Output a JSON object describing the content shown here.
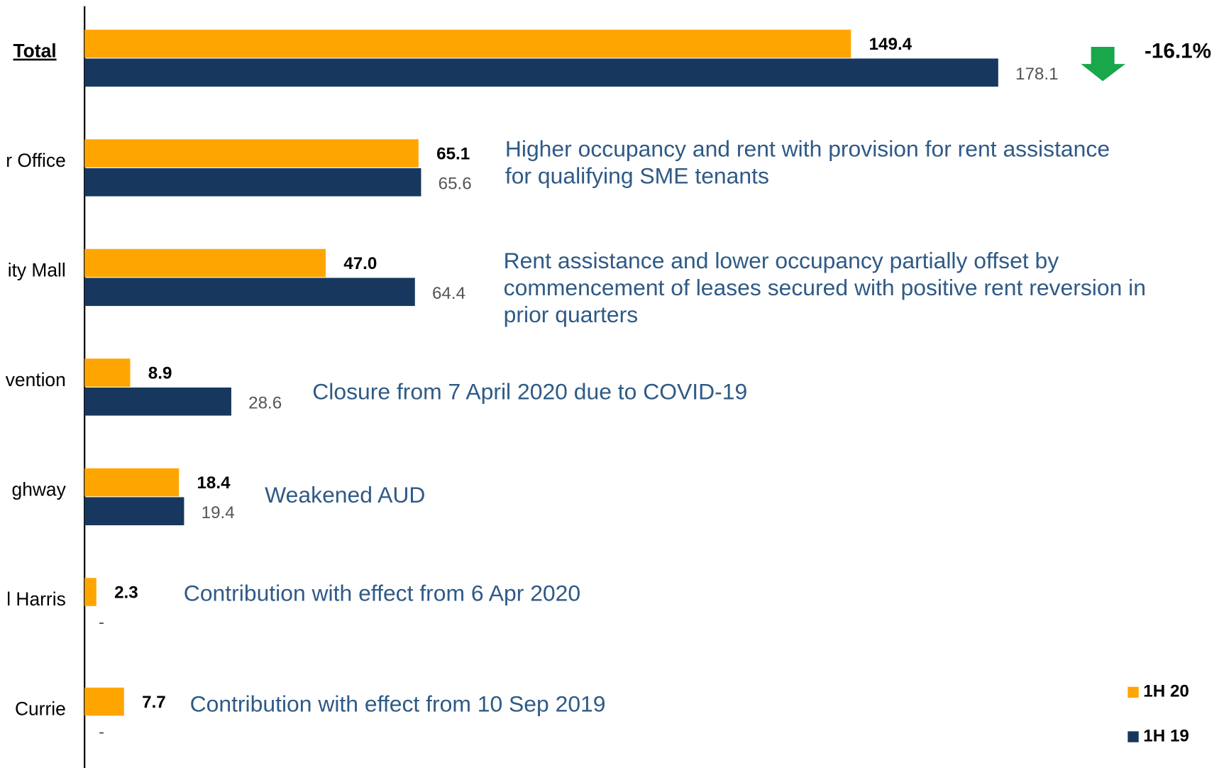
{
  "chart_data": {
    "type": "hbar",
    "categories": [
      "Total",
      "r Office",
      "ity Mall",
      "vention",
      "ghway",
      "l Harris",
      "Currie"
    ],
    "series": [
      {
        "name": "1H 20",
        "color": "#ffa500",
        "values": [
          149.4,
          65.1,
          47.0,
          8.9,
          18.4,
          2.3,
          7.7
        ],
        "value_labels": [
          "149.4",
          "65.1",
          "47.0",
          "8.9",
          "18.4",
          "2.3",
          "7.7"
        ]
      },
      {
        "name": "1H 19",
        "color": "#17375e",
        "values": [
          178.1,
          65.6,
          64.4,
          28.6,
          19.4,
          null,
          null
        ],
        "value_labels": [
          "178.1",
          "65.6",
          "64.4",
          "28.6",
          "19.4",
          "-",
          "-"
        ]
      }
    ],
    "total_change": "-16.1%",
    "total_change_color": "#1aa64a",
    "annotations": [
      [
        "Higher occupancy and rent with provision for rent assistance",
        "for qualifying SME tenants"
      ],
      [
        "Rent assistance and lower occupancy partially offset by",
        "commencement of leases secured with positive rent reversion in",
        "prior quarters"
      ],
      [
        "Closure from 7 April 2020 due to COVID-19"
      ],
      [
        "Weakened AUD"
      ],
      [
        "Contribution with effect from 6 Apr 2020"
      ],
      [
        "Contribution with effect from 10 Sep 2019"
      ]
    ],
    "legend": "bottom-right"
  }
}
